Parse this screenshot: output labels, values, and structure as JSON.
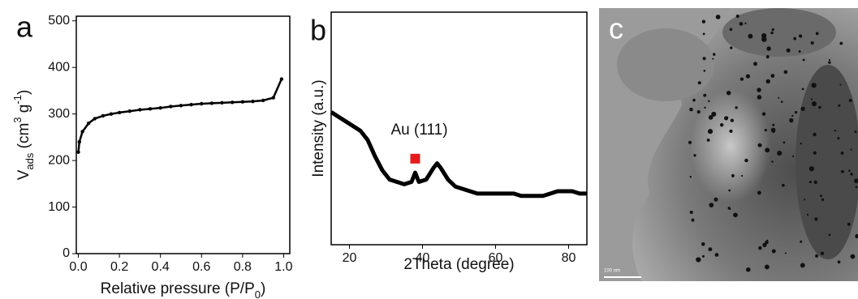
{
  "chart_data": [
    {
      "type": "line",
      "panel_label": "a",
      "xlabel": [
        {
          "text": "Relative pressure (P/P"
        },
        {
          "text": "0",
          "sub": true
        },
        {
          "text": ")"
        }
      ],
      "ylabel": [
        {
          "text": "V"
        },
        {
          "text": "ads",
          "sub": true
        },
        {
          "text": " (cm"
        },
        {
          "text": "3",
          "sup": true
        },
        {
          "text": " g"
        },
        {
          "text": "-1",
          "sup": true
        },
        {
          "text": ")"
        }
      ],
      "x": [
        0.0,
        0.005,
        0.02,
        0.05,
        0.08,
        0.12,
        0.16,
        0.2,
        0.25,
        0.3,
        0.35,
        0.4,
        0.45,
        0.5,
        0.55,
        0.6,
        0.65,
        0.7,
        0.75,
        0.8,
        0.85,
        0.9,
        0.95,
        0.99
      ],
      "values": [
        218,
        240,
        262,
        280,
        290,
        296,
        300,
        303,
        306,
        309,
        311,
        313,
        316,
        318,
        320,
        322,
        323,
        324,
        325,
        326,
        327,
        329,
        335,
        375
      ],
      "color": "#000000",
      "xlim": [
        -0.01,
        1.03
      ],
      "xticks": [
        {
          "value": 0,
          "label": "0.0"
        },
        0.2,
        0.4,
        0.6,
        0.8,
        {
          "value": 1,
          "label": "1.0"
        }
      ],
      "ylim": [
        0,
        510
      ],
      "yticks": [
        0,
        100,
        200,
        300,
        400,
        500
      ]
    },
    {
      "type": "line",
      "panel_label": "b",
      "xlabel": [
        {
          "text": "2Theta (degree)"
        }
      ],
      "ylabel": [
        {
          "text": "Intensity (a.u.)"
        }
      ],
      "x": [
        15,
        17,
        19,
        21,
        23,
        25,
        27,
        29,
        31,
        33,
        35,
        37,
        38,
        39,
        41,
        43,
        44,
        45,
        47,
        49,
        51,
        53,
        55,
        57,
        59,
        61,
        63,
        65,
        67,
        69,
        71,
        73,
        75,
        77,
        79,
        81,
        83,
        85
      ],
      "values": [
        57,
        55,
        53,
        51,
        49,
        45,
        38,
        32,
        28,
        27,
        26,
        27,
        31,
        27,
        28,
        33,
        35,
        33,
        28,
        25,
        24,
        23,
        22,
        22,
        22,
        22,
        22,
        22,
        21,
        21,
        21,
        21,
        22,
        23,
        23,
        23,
        22,
        22
      ],
      "color": "#000000",
      "xlim": [
        15,
        85
      ],
      "xticks": [
        20,
        40,
        60,
        80
      ],
      "ylim": [
        0,
        100
      ],
      "annotation": "Au (111)",
      "marker": {
        "x": 38,
        "y": 37,
        "color": "#e41a1c"
      }
    },
    {
      "type": "image",
      "panel_label": "c",
      "scale_bar": "100 nm"
    }
  ]
}
